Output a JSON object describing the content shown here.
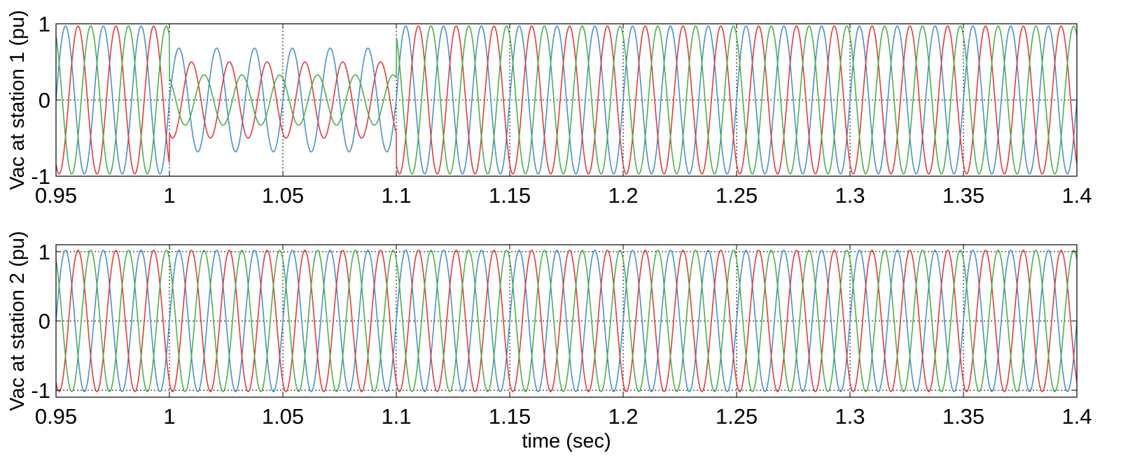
{
  "chart_data": [
    {
      "type": "line",
      "title": "",
      "xlabel": "",
      "ylabel": "Vac at station 1 (pu)",
      "xlim": [
        0.95,
        1.4
      ],
      "ylim": [
        -1,
        1
      ],
      "xticks": [
        0.95,
        1,
        1.05,
        1.1,
        1.15,
        1.2,
        1.25,
        1.3,
        1.35,
        1.4
      ],
      "x_tick_labels": [
        "0.95",
        "1",
        "1.05",
        "1.1",
        "1.15",
        "1.2",
        "1.25",
        "1.3",
        "1.35",
        "1.4"
      ],
      "yticks": [
        -1,
        0,
        1
      ],
      "y_tick_labels": [
        "-1",
        "0",
        "1"
      ],
      "grid": true,
      "legend": "none",
      "frequency_hz": 60,
      "dip_interval": [
        1.0,
        1.1
      ],
      "series": [
        {
          "phase_deg": 0,
          "color": "#4a90c8",
          "amplitude": 0.97,
          "amplitude_during_dip": 0.68
        },
        {
          "phase_deg": -120,
          "color": "#e03c3c",
          "amplitude": 0.97,
          "amplitude_during_dip": 0.5
        },
        {
          "phase_deg": 120,
          "color": "#4daf4a",
          "amplitude": 0.97,
          "amplitude_during_dip": 0.33
        }
      ]
    },
    {
      "type": "line",
      "title": "",
      "xlabel": "time (sec)",
      "ylabel": "Vac at station 2 (pu)",
      "xlim": [
        0.95,
        1.4
      ],
      "ylim": [
        -1.1,
        1.1
      ],
      "xticks": [
        0.95,
        1,
        1.05,
        1.1,
        1.15,
        1.2,
        1.25,
        1.3,
        1.35,
        1.4
      ],
      "x_tick_labels": [
        "0.95",
        "1",
        "1.05",
        "1.1",
        "1.15",
        "1.2",
        "1.25",
        "1.3",
        "1.35",
        "1.4"
      ],
      "yticks": [
        -1,
        0,
        1
      ],
      "y_tick_labels": [
        "-1",
        "0",
        "1"
      ],
      "grid": true,
      "legend": "none",
      "frequency_hz": 60,
      "series": [
        {
          "phase_deg": 0,
          "color": "#4a90c8",
          "amplitude": 1.02
        },
        {
          "phase_deg": -120,
          "color": "#e03c3c",
          "amplitude": 1.02
        },
        {
          "phase_deg": 120,
          "color": "#4daf4a",
          "amplitude": 1.02
        }
      ]
    }
  ]
}
